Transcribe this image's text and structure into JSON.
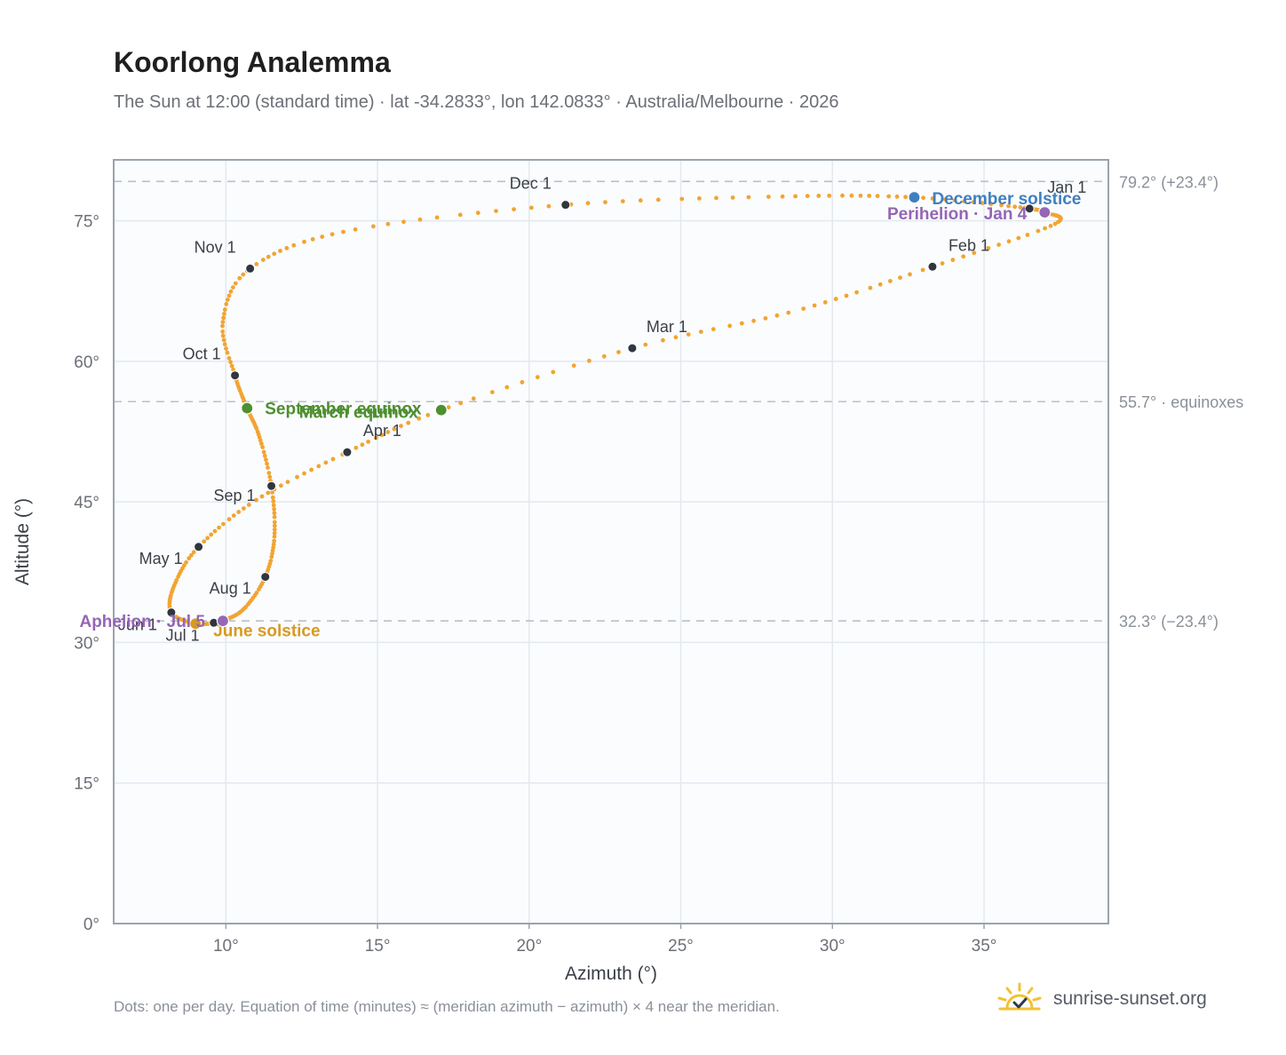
{
  "header": {
    "title": "Koorlong Analemma",
    "subtitle": "The Sun at 12:00 (standard time) · lat -34.2833°, lon 142.0833° · Australia/Melbourne · 2026"
  },
  "footer": {
    "note": "Dots: one per day. Equation of time (minutes) ≈ (meridian azimuth − azimuth) × 4 near the meridian.",
    "brand": "sunrise-sunset.org",
    "brand_icon": "sun-check-icon"
  },
  "colors": {
    "curve": "#f2a431",
    "month_marker": "#2f3640",
    "equinox": "#4e8f30",
    "june_solstice": "#d89a20",
    "december_solstice": "#3f7fc0",
    "apsis": "#9466b5",
    "plot_bg": "#fbfcfe",
    "grid": "#e3e9ee",
    "axis": "#9aa3ad",
    "reference_line": "#b9c0c7"
  },
  "chart_data": {
    "type": "scatter",
    "xlabel": "Azimuth (°)",
    "ylabel": "Altitude (°)",
    "xlim": [
      6.3,
      39.1
    ],
    "ylim": [
      0,
      81.5
    ],
    "x_ticks": [
      {
        "value": 10,
        "label": "10°"
      },
      {
        "value": 15,
        "label": "15°"
      },
      {
        "value": 20,
        "label": "20°"
      },
      {
        "value": 25,
        "label": "25°"
      },
      {
        "value": 30,
        "label": "30°"
      },
      {
        "value": 35,
        "label": "35°"
      }
    ],
    "y_ticks": [
      {
        "value": 0,
        "label": "0°"
      },
      {
        "value": 15,
        "label": "15°"
      },
      {
        "value": 30,
        "label": "30°"
      },
      {
        "value": 45,
        "label": "45°"
      },
      {
        "value": 60,
        "label": "60°"
      },
      {
        "value": 75,
        "label": "75°"
      }
    ],
    "grid": true,
    "reference_lines": [
      {
        "altitude": 79.2,
        "label": "79.2° (+23.4°)"
      },
      {
        "altitude": 55.7,
        "label": "55.7° · equinoxes"
      },
      {
        "altitude": 32.3,
        "label": "32.3° (−23.4°)"
      }
    ],
    "daily_points": {
      "description_of_values": "one point per day of 2026 at 12:00 standard time",
      "anchors": [
        {
          "date": "Jan 1",
          "azimuth": 36.5,
          "altitude": 76.3
        },
        {
          "date": "Jan 4",
          "azimuth": 37.0,
          "altitude": 75.9
        },
        {
          "date": "Jan 15",
          "azimuth": 37.3,
          "altitude": 74.6
        },
        {
          "date": "Feb 1",
          "azimuth": 33.3,
          "altitude": 70.1
        },
        {
          "date": "Feb 15",
          "azimuth": 28.8,
          "altitude": 65.4
        },
        {
          "date": "Mar 1",
          "azimuth": 23.4,
          "altitude": 61.4
        },
        {
          "date": "Mar 20",
          "azimuth": 17.1,
          "altitude": 54.8
        },
        {
          "date": "Apr 1",
          "azimuth": 14.0,
          "altitude": 50.3
        },
        {
          "date": "Apr 15",
          "azimuth": 11.0,
          "altitude": 45.2
        },
        {
          "date": "May 1",
          "azimuth": 9.1,
          "altitude": 40.2
        },
        {
          "date": "May 15",
          "azimuth": 8.3,
          "altitude": 36.1
        },
        {
          "date": "Jun 1",
          "azimuth": 8.2,
          "altitude": 33.2
        },
        {
          "date": "Jun 21",
          "azimuth": 9.0,
          "altitude": 32.0
        },
        {
          "date": "Jul 1",
          "azimuth": 9.6,
          "altitude": 32.1
        },
        {
          "date": "Jul 5",
          "azimuth": 9.9,
          "altitude": 32.3
        },
        {
          "date": "Jul 15",
          "azimuth": 10.6,
          "altitude": 33.6
        },
        {
          "date": "Aug 1",
          "azimuth": 11.3,
          "altitude": 37.0
        },
        {
          "date": "Aug 15",
          "azimuth": 11.6,
          "altitude": 41.3
        },
        {
          "date": "Sep 1",
          "azimuth": 11.5,
          "altitude": 46.7
        },
        {
          "date": "Sep 15",
          "azimuth": 11.1,
          "altitude": 52.0
        },
        {
          "date": "Sep 23",
          "azimuth": 10.7,
          "altitude": 55.0
        },
        {
          "date": "Oct 1",
          "azimuth": 10.3,
          "altitude": 58.5
        },
        {
          "date": "Oct 15",
          "azimuth": 9.9,
          "altitude": 64.2
        },
        {
          "date": "Nov 1",
          "azimuth": 10.8,
          "altitude": 69.9
        },
        {
          "date": "Nov 15",
          "azimuth": 14.0,
          "altitude": 73.9
        },
        {
          "date": "Dec 1",
          "azimuth": 21.2,
          "altitude": 76.7
        },
        {
          "date": "Dec 15",
          "azimuth": 28.5,
          "altitude": 77.6
        },
        {
          "date": "Dec 22",
          "azimuth": 32.7,
          "altitude": 77.5
        },
        {
          "date": "Dec 31",
          "azimuth": 36.3,
          "altitude": 76.4
        }
      ]
    },
    "month_markers": [
      {
        "label": "Jan 1",
        "azimuth": 36.5,
        "altitude": 76.3
      },
      {
        "label": "Feb 1",
        "azimuth": 33.3,
        "altitude": 70.1
      },
      {
        "label": "Mar 1",
        "azimuth": 23.4,
        "altitude": 61.4
      },
      {
        "label": "Apr 1",
        "azimuth": 14.0,
        "altitude": 50.3
      },
      {
        "label": "May 1",
        "azimuth": 9.1,
        "altitude": 40.2
      },
      {
        "label": "Jun 1",
        "azimuth": 8.2,
        "altitude": 33.2
      },
      {
        "label": "Jul 1",
        "azimuth": 9.6,
        "altitude": 32.1
      },
      {
        "label": "Aug 1",
        "azimuth": 11.3,
        "altitude": 37.0
      },
      {
        "label": "Sep 1",
        "azimuth": 11.5,
        "altitude": 46.7
      },
      {
        "label": "Oct 1",
        "azimuth": 10.3,
        "altitude": 58.5
      },
      {
        "label": "Nov 1",
        "azimuth": 10.8,
        "altitude": 69.9
      },
      {
        "label": "Dec 1",
        "azimuth": 21.2,
        "altitude": 76.7
      }
    ],
    "events": [
      {
        "label": "March equinox",
        "azimuth": 17.1,
        "altitude": 54.8,
        "kind": "equinox"
      },
      {
        "label": "September equinox",
        "azimuth": 10.7,
        "altitude": 55.0,
        "kind": "equinox"
      },
      {
        "label": "June solstice",
        "azimuth": 9.0,
        "altitude": 32.0,
        "kind": "june_solstice"
      },
      {
        "label": "December solstice",
        "azimuth": 32.7,
        "altitude": 77.5,
        "kind": "december_solstice"
      },
      {
        "label": "Perihelion · Jan 4",
        "azimuth": 37.0,
        "altitude": 75.9,
        "kind": "apsis"
      },
      {
        "label": "Aphelion · Jul 5",
        "azimuth": 9.9,
        "altitude": 32.3,
        "kind": "apsis"
      }
    ]
  }
}
